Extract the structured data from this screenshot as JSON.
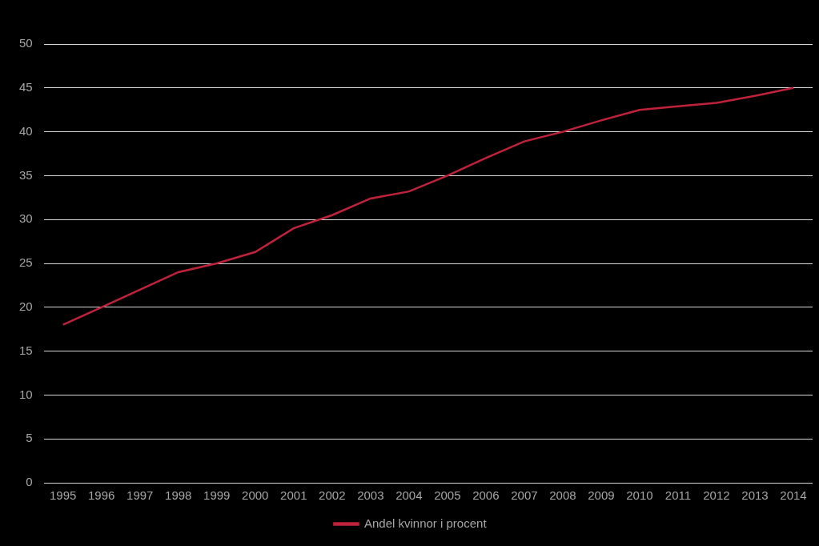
{
  "chart_data": {
    "type": "line",
    "categories": [
      "1995",
      "1996",
      "1997",
      "1998",
      "1999",
      "2000",
      "2001",
      "2002",
      "2003",
      "2004",
      "2005",
      "2006",
      "2007",
      "2008",
      "2009",
      "2010",
      "2011",
      "2012",
      "2013",
      "2014"
    ],
    "series": [
      {
        "name": "Andel kvinnor i procent",
        "color": "#c0223b",
        "values": [
          18,
          20,
          22,
          24,
          25,
          26.3,
          29,
          30.5,
          32.4,
          33.2,
          35,
          37,
          38.9,
          40,
          41.3,
          42.5,
          42.9,
          43.3,
          44.1,
          45
        ]
      }
    ],
    "ylim": [
      0,
      50
    ],
    "yticks": [
      0,
      5,
      10,
      15,
      20,
      25,
      30,
      35,
      40,
      45,
      50
    ],
    "grid": true,
    "legend": "bottom"
  }
}
